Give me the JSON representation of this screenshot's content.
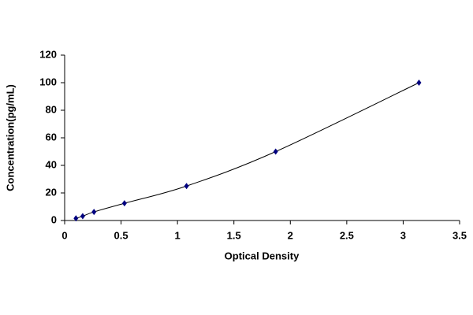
{
  "chart_data": {
    "type": "scatter",
    "x_label": "Optical Density",
    "y_label": "Concentration(pg/mL)",
    "x": [
      0.1,
      0.16,
      0.26,
      0.53,
      1.08,
      1.87,
      3.14
    ],
    "values": [
      1.56,
      3.12,
      6.25,
      12.5,
      25,
      50,
      100
    ],
    "color": "#000080",
    "line_color": "#000000",
    "smooth_line": true,
    "xlim": [
      0,
      3.5
    ],
    "xticks": [
      0,
      0.5,
      1,
      1.5,
      2,
      2.5,
      3,
      3.5
    ],
    "ylim": [
      0,
      120
    ],
    "yticks": [
      0,
      20,
      40,
      60,
      80,
      100,
      120
    ]
  }
}
